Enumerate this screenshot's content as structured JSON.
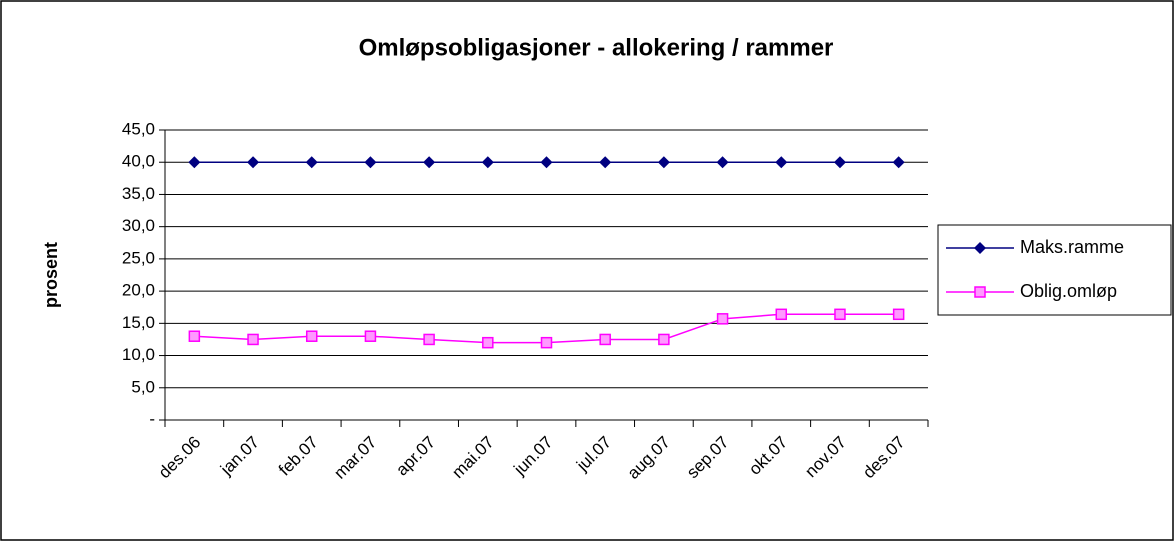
{
  "chart_data": {
    "type": "line",
    "title": "Omløpsobligasjoner - allokering / rammer",
    "y_label": "prosent",
    "categories": [
      "des.06",
      "jan.07",
      "feb.07",
      "mar.07",
      "apr.07",
      "mai.07",
      "jun.07",
      "jul.07",
      "aug.07",
      "sep.07",
      "okt.07",
      "nov.07",
      "des.07"
    ],
    "series": [
      {
        "name": "Maks.ramme",
        "color": "#000080",
        "marker": "diamond",
        "values": [
          40,
          40,
          40,
          40,
          40,
          40,
          40,
          40,
          40,
          40,
          40,
          40,
          40
        ]
      },
      {
        "name": "Oblig.omløp",
        "color": "#ff00ff",
        "marker": "square",
        "values": [
          13.0,
          12.5,
          13.0,
          13.0,
          12.5,
          12.0,
          12.0,
          12.5,
          12.5,
          15.7,
          16.4,
          16.4,
          16.4
        ]
      }
    ],
    "ylim": [
      0,
      45
    ],
    "yticks": [
      {
        "value": 0,
        "label": "-"
      },
      {
        "value": 5,
        "label": "5,0"
      },
      {
        "value": 10,
        "label": "10,0"
      },
      {
        "value": 15,
        "label": "15,0"
      },
      {
        "value": 20,
        "label": "20,0"
      },
      {
        "value": 25,
        "label": "25,0"
      },
      {
        "value": 30,
        "label": "30,0"
      },
      {
        "value": 35,
        "label": "35,0"
      },
      {
        "value": 40,
        "label": "40,0"
      },
      {
        "value": 45,
        "label": "45,0"
      }
    ],
    "grid": true,
    "legend": "right"
  }
}
